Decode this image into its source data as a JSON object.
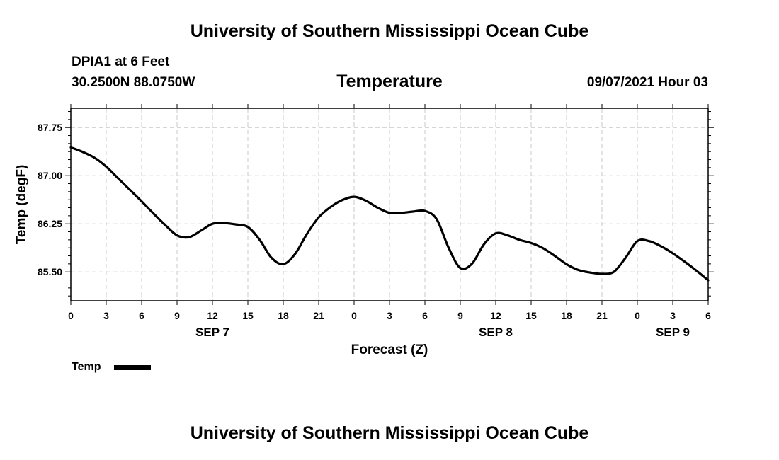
{
  "header": {
    "title": "University of Southern Mississippi Ocean Cube",
    "station": "DPIA1 at 6 Feet",
    "coords": "30.2500N  88.0750W",
    "parameter": "Temperature",
    "datetime": "09/07/2021 Hour 03"
  },
  "footer": {
    "title": "University of Southern Mississippi Ocean Cube"
  },
  "legend": {
    "label": "Temp",
    "color": "#000000"
  },
  "chart_data": {
    "type": "line",
    "title": "Temperature",
    "xlabel": "Forecast (Z)",
    "ylabel": "Temp (degF)",
    "xlim": [
      0,
      54
    ],
    "ylim": [
      85.05,
      88.05
    ],
    "grid": true,
    "x_ticks": [
      0,
      3,
      6,
      9,
      12,
      15,
      18,
      21,
      24,
      27,
      30,
      33,
      36,
      39,
      42,
      45,
      48,
      51,
      54
    ],
    "x_tick_labels": [
      "0",
      "3",
      "6",
      "9",
      "12",
      "15",
      "18",
      "21",
      "0",
      "3",
      "6",
      "9",
      "12",
      "15",
      "18",
      "21",
      "0",
      "3",
      "6"
    ],
    "day_labels": [
      {
        "x": 12,
        "label": "SEP 7"
      },
      {
        "x": 36,
        "label": "SEP 8"
      },
      {
        "x": 51,
        "label": "SEP 9"
      }
    ],
    "y_ticks": [
      85.5,
      86.25,
      87.0,
      87.75
    ],
    "y_tick_labels": [
      "85.50",
      "86.25",
      "87.00",
      "87.75"
    ],
    "y_minor_ticks": [
      85.125,
      85.25,
      85.375,
      85.625,
      85.75,
      85.875,
      86.0,
      86.125,
      86.375,
      86.5,
      86.625,
      86.75,
      86.875,
      87.125,
      87.25,
      87.375,
      87.5,
      87.625,
      87.875,
      88.0
    ],
    "series": [
      {
        "name": "Temp",
        "color": "#000000",
        "x": [
          0,
          1,
          2,
          3,
          4,
          5,
          6,
          7,
          8,
          9,
          10,
          11,
          12,
          13,
          14,
          15,
          16,
          17,
          18,
          19,
          20,
          21,
          22,
          23,
          24,
          25,
          26,
          27,
          28,
          29,
          30,
          31,
          32,
          33,
          34,
          35,
          36,
          37,
          38,
          39,
          40,
          41,
          42,
          43,
          44,
          45,
          46,
          47,
          48,
          49,
          50,
          51,
          52,
          53,
          54
        ],
        "values": [
          87.44,
          87.37,
          87.28,
          87.14,
          86.96,
          86.78,
          86.6,
          86.41,
          86.23,
          86.07,
          86.04,
          86.14,
          86.25,
          86.26,
          86.24,
          86.2,
          86.0,
          85.72,
          85.62,
          85.78,
          86.09,
          86.35,
          86.51,
          86.62,
          86.67,
          86.61,
          86.5,
          86.42,
          86.42,
          86.44,
          86.45,
          86.32,
          85.88,
          85.56,
          85.63,
          85.93,
          86.1,
          86.07,
          86.0,
          85.95,
          85.87,
          85.75,
          85.62,
          85.53,
          85.49,
          85.47,
          85.5,
          85.72,
          85.98,
          85.98,
          85.9,
          85.79,
          85.66,
          85.52,
          85.37
        ]
      }
    ]
  }
}
